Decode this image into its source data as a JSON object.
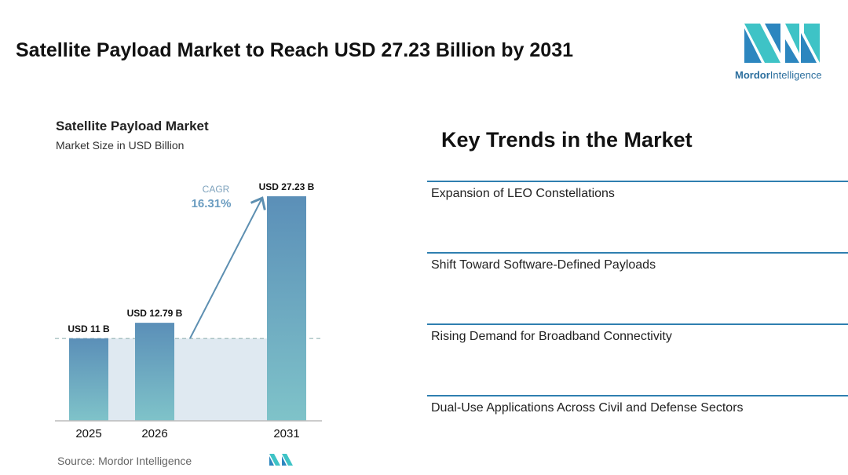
{
  "header": {
    "title": "Satellite Payload Market to Reach USD 27.23 Billion by 2031",
    "logo_text": "Mordor Intelligence"
  },
  "chart_data": {
    "type": "bar",
    "title": "Satellite Payload Market",
    "subtitle": "Market Size in USD Billion",
    "categories": [
      "2025",
      "2026",
      "2031"
    ],
    "values": [
      11,
      12.79,
      27.23
    ],
    "labels": [
      "USD 11 B",
      "USD 12.79 B",
      "USD 27.23 B"
    ],
    "ylim": [
      1.6,
      27.23
    ],
    "cagr_label": "CAGR",
    "cagr_value": "16.31%",
    "bar_color_top": "#5b8fb8",
    "bar_color_bottom": "#7fc3c9"
  },
  "source": "Source: Mordor Intelligence",
  "trends": {
    "title": "Key Trends in the Market",
    "items": [
      "Expansion of LEO Constellations",
      "Shift Toward Software-Defined Payloads",
      "Rising Demand for Broadband Connectivity",
      "Dual-Use Applications Across Civil and Defense Sectors"
    ]
  }
}
